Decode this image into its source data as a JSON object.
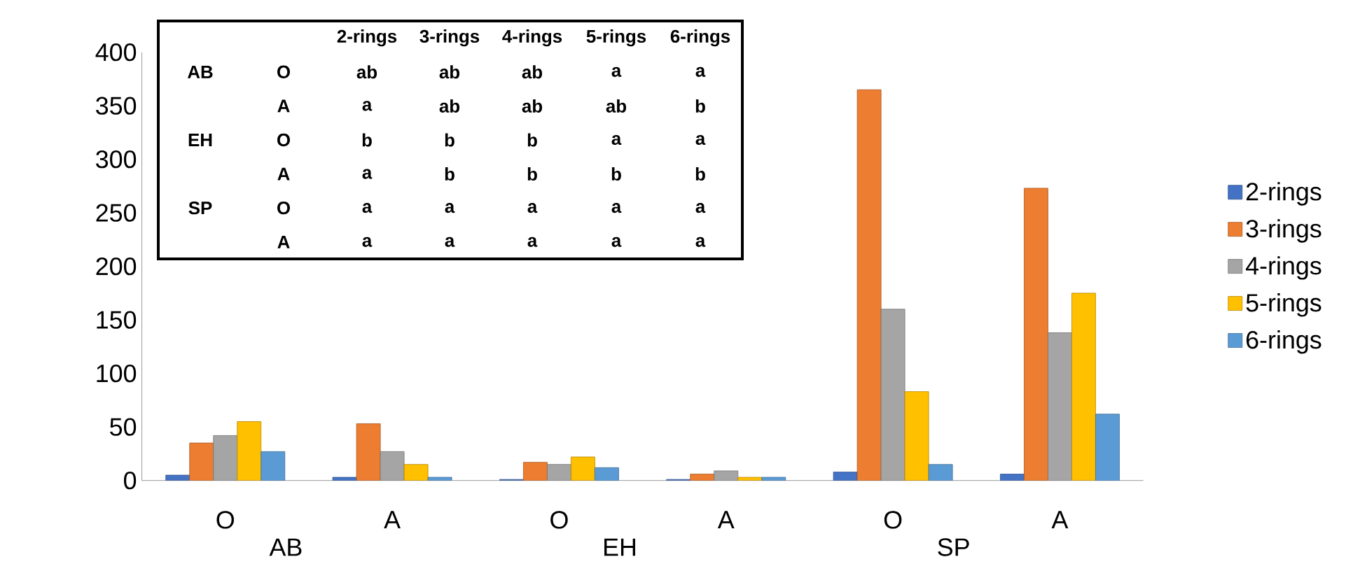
{
  "chart_data": {
    "type": "bar",
    "categories": [
      "O",
      "A",
      "O",
      "A",
      "O",
      "A"
    ],
    "series": [
      {
        "name": "2-rings",
        "color": "#4472c4",
        "values": [
          5,
          3,
          1,
          1,
          8,
          6
        ]
      },
      {
        "name": "3-rings",
        "color": "#ed7d31",
        "values": [
          35,
          53,
          17,
          6,
          365,
          273
        ]
      },
      {
        "name": "4-rings",
        "color": "#a5a5a5",
        "values": [
          42,
          27,
          15,
          9,
          160,
          138
        ]
      },
      {
        "name": "5-rings",
        "color": "#ffc000",
        "values": [
          55,
          15,
          22,
          3,
          83,
          175
        ]
      },
      {
        "name": "6-rings",
        "color": "#5b9bd5",
        "values": [
          27,
          3,
          12,
          3,
          15,
          62
        ]
      }
    ],
    "ylim": [
      0,
      400
    ],
    "yticks": [
      0,
      50,
      100,
      150,
      200,
      250,
      300,
      350,
      400
    ],
    "grid": false,
    "legend": "right",
    "annotations": [
      "AB",
      "EH",
      "SP",
      "2-rings",
      "3-rings",
      "4-rings",
      "5-rings",
      "6-rings",
      "AB",
      "O",
      "ab",
      "ab",
      "ab",
      "a",
      "a",
      "A",
      "a",
      "ab",
      "ab",
      "ab",
      "b",
      "EH",
      "O",
      "b",
      "b",
      "b",
      "a",
      "a",
      "A",
      "a",
      "b",
      "b",
      "b",
      "b",
      "SP",
      "O",
      "a",
      "a",
      "a",
      "a",
      "a",
      "A",
      "a",
      "a",
      "a",
      "a",
      "a"
    ]
  }
}
